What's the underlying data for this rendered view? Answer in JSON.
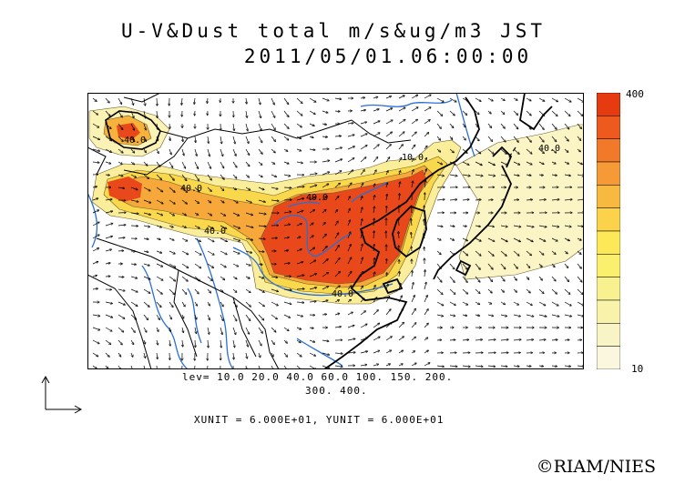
{
  "title_line1": "U-V&Dust total m/s&ug/m3 JST",
  "title_line2": "2011/05/01.06:00:00",
  "legend": {
    "max_label": "400",
    "min_label": "10",
    "colors": [
      "#e63a10",
      "#ee5a1e",
      "#f2782a",
      "#f59a36",
      "#f8b940",
      "#fbd24a",
      "#fde857",
      "#fbf06e",
      "#f9f190",
      "#f8f2ab",
      "#f8f4c6",
      "#faf7de"
    ]
  },
  "contour_labels": [
    "40.0",
    "40.0",
    "40.0",
    "10.0",
    "40.0",
    "40.0",
    "40.0"
  ],
  "levels_line1": "lev= 10.0 20.0 40.0 60.0 100. 150. 200.",
  "levels_line2": "300. 400.",
  "units_line": "XUNIT = 6.000E+01, YUNIT = 6.000E+01",
  "credit": "©RIAM/NIES",
  "map_data": {
    "field": "dust concentration (ug/m3) with wind vectors",
    "contour_levels": [
      10,
      20,
      40,
      60,
      100,
      150,
      200,
      300,
      400
    ],
    "region": "East Asia"
  }
}
